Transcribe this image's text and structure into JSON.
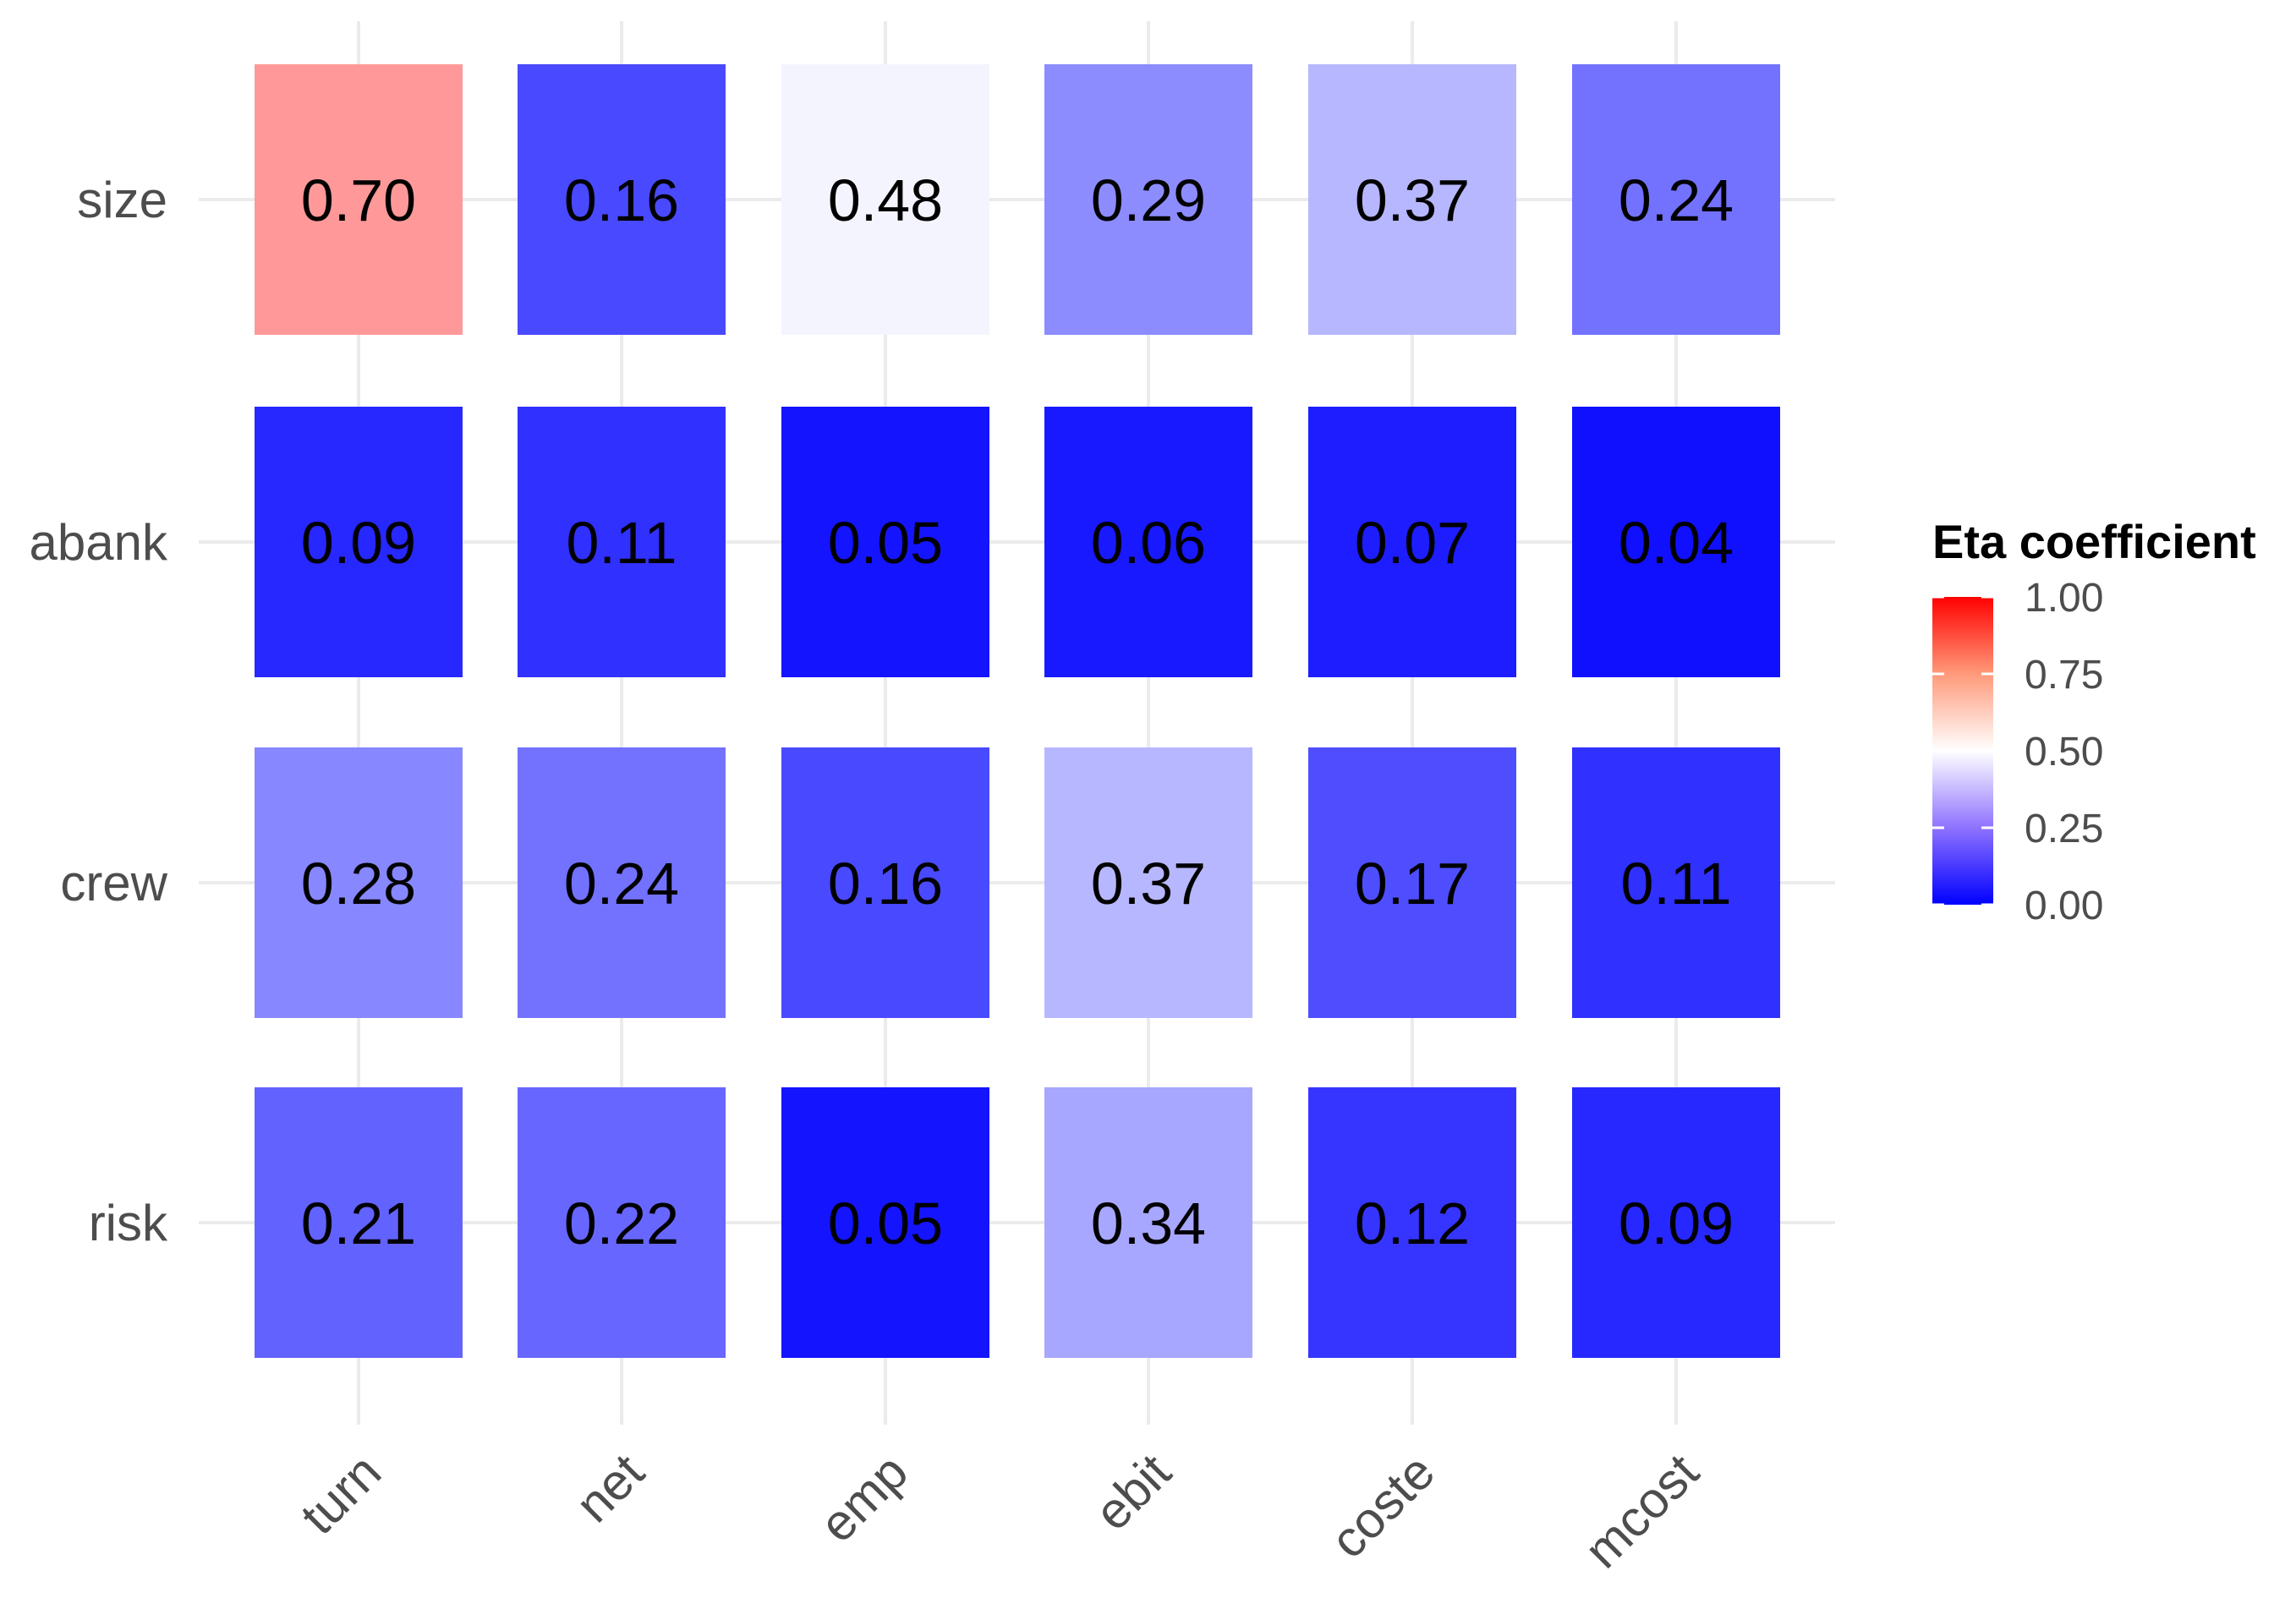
{
  "chart_data": {
    "type": "heatmap",
    "title": "",
    "xlabel": "",
    "ylabel": "",
    "x_categories": [
      "turn",
      "net",
      "emp",
      "ebit",
      "coste",
      "mcost"
    ],
    "y_categories": [
      "size",
      "abank",
      "crew",
      "risk"
    ],
    "values": [
      [
        0.7,
        0.16,
        0.48,
        0.29,
        0.37,
        0.24
      ],
      [
        0.09,
        0.11,
        0.05,
        0.06,
        0.07,
        0.04
      ],
      [
        0.28,
        0.24,
        0.16,
        0.37,
        0.17,
        0.11
      ],
      [
        0.21,
        0.22,
        0.05,
        0.34,
        0.12,
        0.09
      ]
    ],
    "value_labels": [
      [
        "0.70",
        "0.16",
        "0.48",
        "0.29",
        "0.37",
        "0.24"
      ],
      [
        "0.09",
        "0.11",
        "0.05",
        "0.06",
        "0.07",
        "0.04"
      ],
      [
        "0.28",
        "0.24",
        "0.16",
        "0.37",
        "0.17",
        "0.11"
      ],
      [
        "0.21",
        "0.22",
        "0.05",
        "0.34",
        "0.12",
        "0.09"
      ]
    ],
    "color_scale": {
      "low": "#0000ff",
      "mid": "#ffffff",
      "high": "#ff0000",
      "midpoint": 0.5,
      "limits": [
        0,
        1
      ]
    },
    "legend": {
      "title": "Eta coefficient",
      "ticks": [
        1.0,
        0.75,
        0.5,
        0.25,
        0.0
      ],
      "tick_labels": [
        "1.00",
        "0.75",
        "0.50",
        "0.25",
        "0.00"
      ],
      "position": "right"
    },
    "grid": true
  }
}
